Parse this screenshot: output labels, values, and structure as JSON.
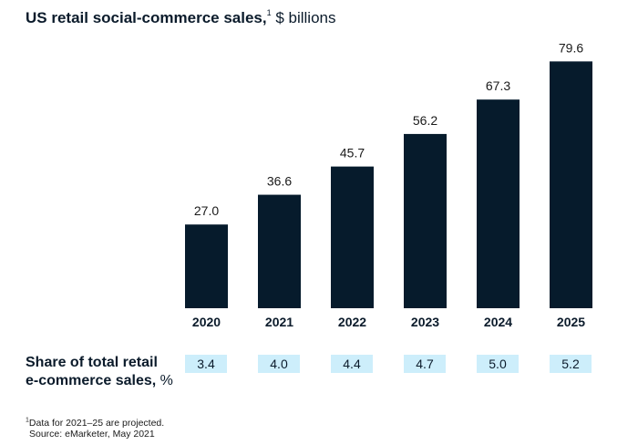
{
  "title": {
    "main": "US retail social-commerce sales,",
    "footnote_mark": "1",
    "unit": " $ billions"
  },
  "chart_data": {
    "type": "bar",
    "categories": [
      "2020",
      "2021",
      "2022",
      "2023",
      "2024",
      "2025"
    ],
    "values": [
      27.0,
      36.6,
      45.7,
      56.2,
      67.3,
      79.6
    ],
    "value_labels": [
      "27.0",
      "36.6",
      "45.7",
      "56.2",
      "67.3",
      "79.6"
    ],
    "title": "US retail social-commerce sales, $ billions",
    "xlabel": "",
    "ylabel": "",
    "ylim": [
      0,
      85
    ],
    "grid": false,
    "bar_color": "#061b2c"
  },
  "share": {
    "label_line1": "Share of total retail",
    "label_line2_bold": "e-commerce sales,",
    "label_line2_unit": " %",
    "values": [
      "3.4",
      "4.0",
      "4.4",
      "4.7",
      "5.0",
      "5.2"
    ],
    "box_color": "#cdeefb"
  },
  "footnote": {
    "mark": "1",
    "line1": "Data for 2021–25 are projected.",
    "line2": "Source: eMarketer, May 2021"
  }
}
